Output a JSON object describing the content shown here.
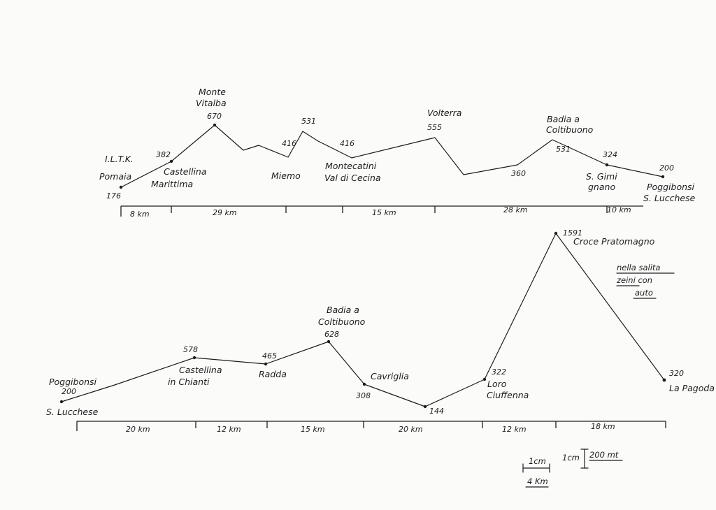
{
  "profile1": {
    "header": "I.L.T.K.",
    "points": [
      {
        "elev": "176",
        "name": [
          "Pomaia"
        ]
      },
      {
        "elev": "382",
        "name": [
          "Castellina",
          "Marittima"
        ]
      },
      {
        "elev": "670",
        "name": [
          "Monte",
          "Vitalba"
        ]
      },
      {
        "elev": "",
        "name": []
      },
      {
        "elev": "",
        "name": []
      },
      {
        "elev": "416",
        "name": [
          "Miemo"
        ]
      },
      {
        "elev": "531",
        "name": []
      },
      {
        "elev": "416",
        "name": [
          "Montecatini",
          "Val di Cecina"
        ]
      },
      {
        "elev": "555",
        "name": [
          "Volterra"
        ]
      },
      {
        "elev": "",
        "name": []
      },
      {
        "elev": "360",
        "name": []
      },
      {
        "elev": "531",
        "name": [
          "Badia a",
          "Coltibuono"
        ]
      },
      {
        "elev": "324",
        "name": [
          "S. Gimi",
          "gnano"
        ]
      },
      {
        "elev": "200",
        "name": [
          "Poggibonsi",
          "S. Lucchese"
        ]
      }
    ],
    "segments": [
      "8 km",
      "29 km",
      "15 km",
      "28 km",
      "10 km"
    ]
  },
  "profile2": {
    "points": [
      {
        "elev": "200",
        "name": [
          "Poggibonsi",
          "S. Lucchese"
        ]
      },
      {
        "elev": "",
        "name": []
      },
      {
        "elev": "578",
        "name": [
          "Castellina",
          "in Chianti"
        ]
      },
      {
        "elev": "465",
        "name": [
          "Radda"
        ]
      },
      {
        "elev": "628",
        "name": [
          "Badia a",
          "Coltibuono"
        ]
      },
      {
        "elev": "308",
        "name": [
          "Cavriglia"
        ]
      },
      {
        "elev": "144",
        "name": []
      },
      {
        "elev": "322",
        "name": [
          "Loro",
          "Ciuffenna"
        ]
      },
      {
        "elev": "1591",
        "name": [
          "Croce Pratomagno"
        ]
      },
      {
        "elev": "320",
        "name": [
          "La Pagoda"
        ]
      }
    ],
    "segments": [
      "20 km",
      "12 km",
      "15 km",
      "20 km",
      "12 km",
      "18 km"
    ],
    "note": [
      "nella salita",
      "zeini con",
      "auto"
    ]
  },
  "scale": {
    "horizontal_top": "1cm",
    "horizontal_bottom": "4 Km",
    "vertical_left": "1cm",
    "vertical_right": "200 mt"
  }
}
